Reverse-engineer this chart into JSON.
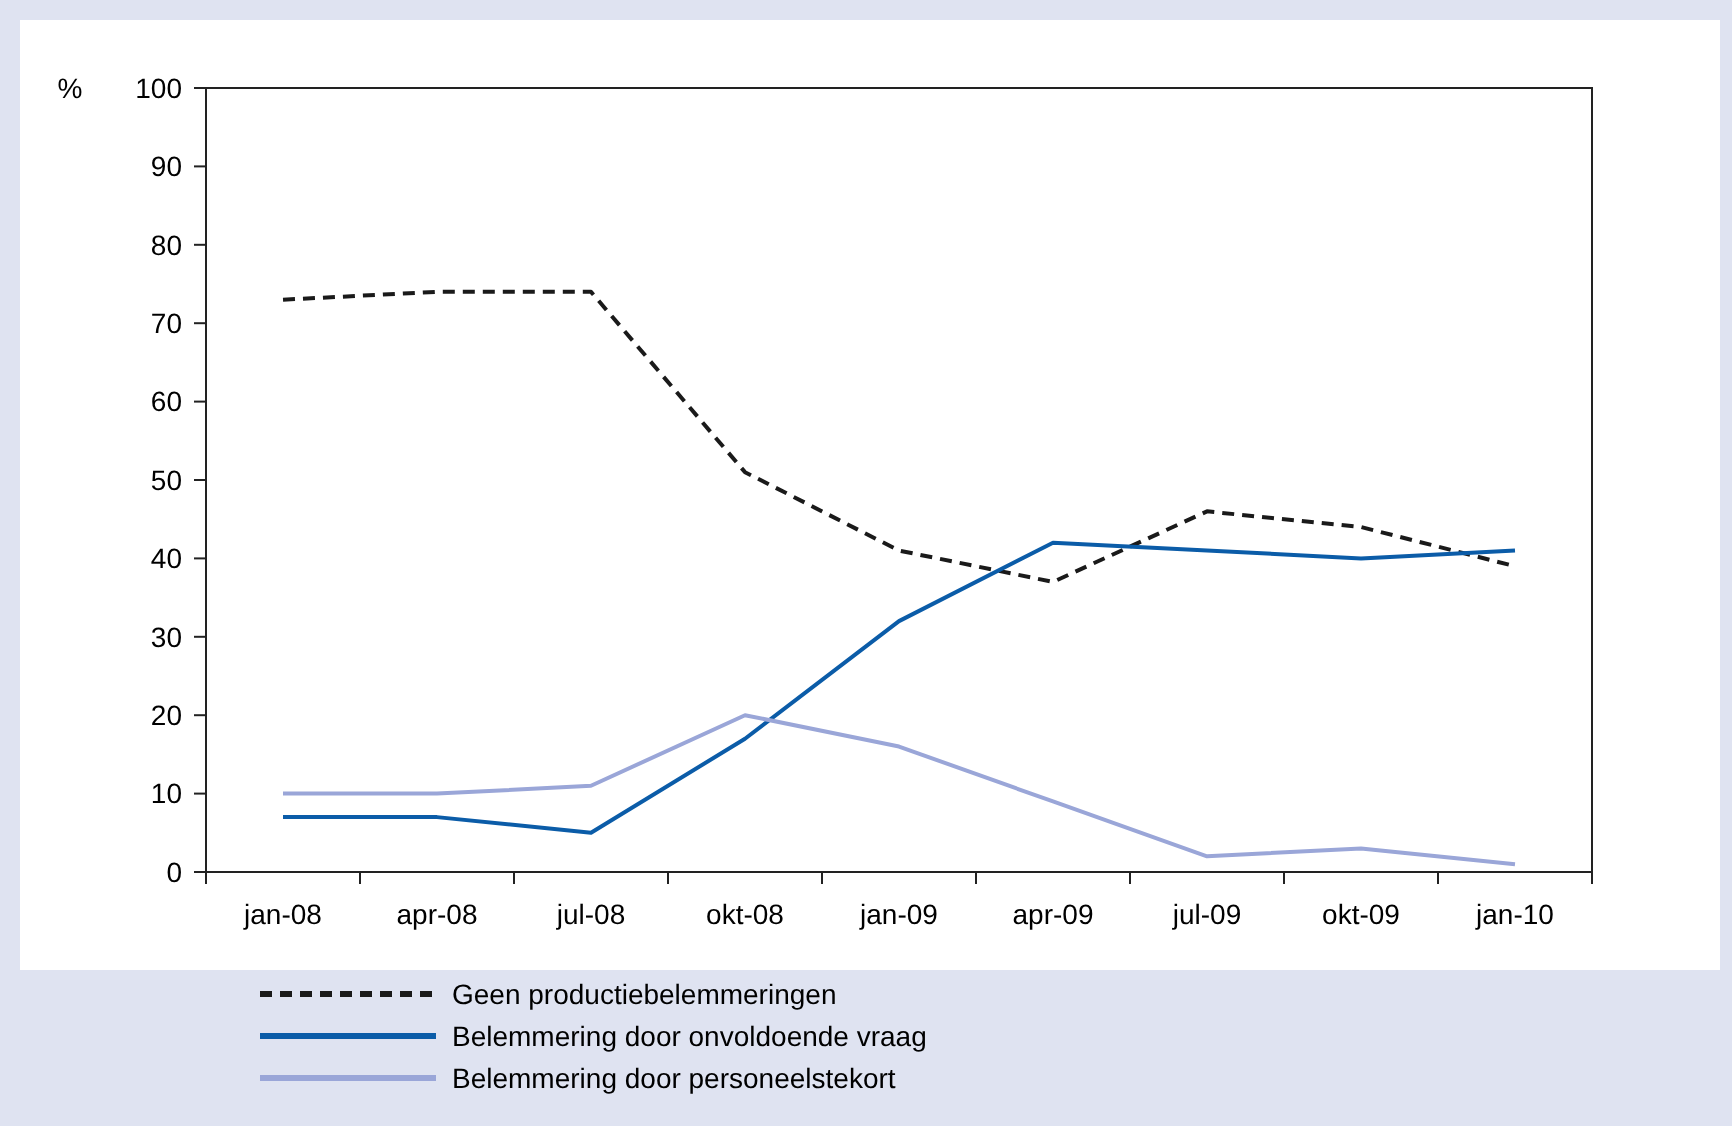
{
  "chart_data": {
    "type": "line",
    "ylabel": "%",
    "categories": [
      "jan-08",
      "apr-08",
      "jul-08",
      "okt-08",
      "jan-09",
      "apr-09",
      "jul-09",
      "okt-09",
      "jan-10"
    ],
    "ylim": [
      0,
      100
    ],
    "yticks": [
      0,
      10,
      20,
      30,
      40,
      50,
      60,
      70,
      80,
      90,
      100
    ],
    "grid": false,
    "legend": "bottom",
    "marker": "none",
    "series": [
      {
        "name": "Geen productiebelemmeringen",
        "color": "#1a1a1a",
        "line_style": "dashed",
        "values": [
          73,
          74,
          74,
          51,
          41,
          37,
          46,
          44,
          39
        ]
      },
      {
        "name": "Belemmering door onvoldoende vraag",
        "color": "#0b5ca8",
        "line_style": "solid",
        "values": [
          7,
          7,
          5,
          17,
          32,
          42,
          41,
          40,
          41
        ]
      },
      {
        "name": "Belemmering door personeelstekort",
        "color": "#9aa6d8",
        "line_style": "solid",
        "values": [
          10,
          10,
          11,
          20,
          16,
          9,
          2,
          3,
          1
        ]
      }
    ]
  }
}
